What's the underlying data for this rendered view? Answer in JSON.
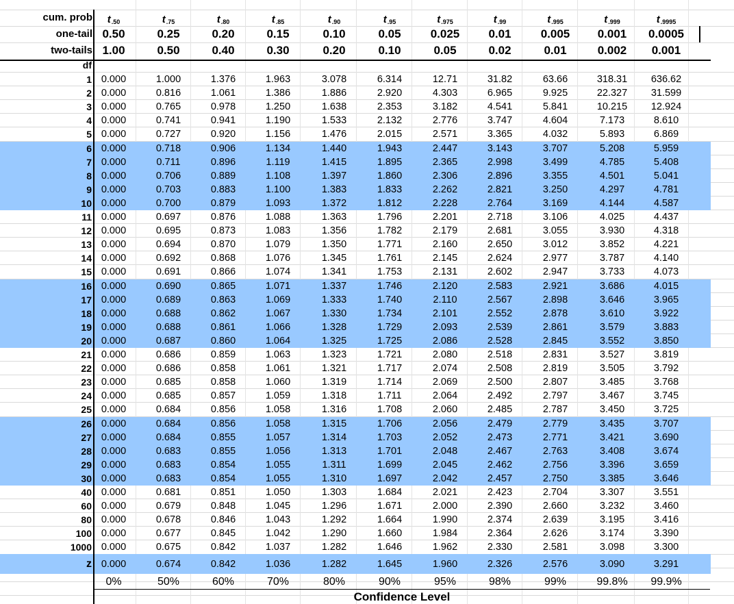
{
  "header": {
    "row_labels": {
      "cum_prob": "cum. prob",
      "one_tail": "one-tail",
      "two_tails": "two-tails"
    },
    "symbols": [
      {
        "t": "t",
        "sub": ".50"
      },
      {
        "t": "t",
        "sub": ".75"
      },
      {
        "t": "t",
        "sub": ".80"
      },
      {
        "t": "t",
        "sub": ".85"
      },
      {
        "t": "t",
        "sub": ".90"
      },
      {
        "t": "t",
        "sub": ".95"
      },
      {
        "t": "t",
        "sub": ".975"
      },
      {
        "t": "t",
        "sub": ".99"
      },
      {
        "t": "t",
        "sub": ".995"
      },
      {
        "t": "t",
        "sub": ".999"
      },
      {
        "t": "t",
        "sub": ".9995"
      }
    ],
    "one_tail": [
      "0.50",
      "0.25",
      "0.20",
      "0.15",
      "0.10",
      "0.05",
      "0.025",
      "0.01",
      "0.005",
      "0.001",
      "0.0005"
    ],
    "two_tails": [
      "1.00",
      "0.50",
      "0.40",
      "0.30",
      "0.20",
      "0.10",
      "0.05",
      "0.02",
      "0.01",
      "0.002",
      "0.001"
    ]
  },
  "df_label": "df",
  "rows": [
    {
      "df": "1",
      "values": [
        "0.000",
        "1.000",
        "1.376",
        "1.963",
        "3.078",
        "6.314",
        "12.71",
        "31.82",
        "63.66",
        "318.31",
        "636.62"
      ]
    },
    {
      "df": "2",
      "values": [
        "0.000",
        "0.816",
        "1.061",
        "1.386",
        "1.886",
        "2.920",
        "4.303",
        "6.965",
        "9.925",
        "22.327",
        "31.599"
      ]
    },
    {
      "df": "3",
      "values": [
        "0.000",
        "0.765",
        "0.978",
        "1.250",
        "1.638",
        "2.353",
        "3.182",
        "4.541",
        "5.841",
        "10.215",
        "12.924"
      ]
    },
    {
      "df": "4",
      "values": [
        "0.000",
        "0.741",
        "0.941",
        "1.190",
        "1.533",
        "2.132",
        "2.776",
        "3.747",
        "4.604",
        "7.173",
        "8.610"
      ]
    },
    {
      "df": "5",
      "values": [
        "0.000",
        "0.727",
        "0.920",
        "1.156",
        "1.476",
        "2.015",
        "2.571",
        "3.365",
        "4.032",
        "5.893",
        "6.869"
      ]
    },
    {
      "df": "6",
      "values": [
        "0.000",
        "0.718",
        "0.906",
        "1.134",
        "1.440",
        "1.943",
        "2.447",
        "3.143",
        "3.707",
        "5.208",
        "5.959"
      ]
    },
    {
      "df": "7",
      "values": [
        "0.000",
        "0.711",
        "0.896",
        "1.119",
        "1.415",
        "1.895",
        "2.365",
        "2.998",
        "3.499",
        "4.785",
        "5.408"
      ]
    },
    {
      "df": "8",
      "values": [
        "0.000",
        "0.706",
        "0.889",
        "1.108",
        "1.397",
        "1.860",
        "2.306",
        "2.896",
        "3.355",
        "4.501",
        "5.041"
      ]
    },
    {
      "df": "9",
      "values": [
        "0.000",
        "0.703",
        "0.883",
        "1.100",
        "1.383",
        "1.833",
        "2.262",
        "2.821",
        "3.250",
        "4.297",
        "4.781"
      ]
    },
    {
      "df": "10",
      "values": [
        "0.000",
        "0.700",
        "0.879",
        "1.093",
        "1.372",
        "1.812",
        "2.228",
        "2.764",
        "3.169",
        "4.144",
        "4.587"
      ]
    },
    {
      "df": "11",
      "values": [
        "0.000",
        "0.697",
        "0.876",
        "1.088",
        "1.363",
        "1.796",
        "2.201",
        "2.718",
        "3.106",
        "4.025",
        "4.437"
      ]
    },
    {
      "df": "12",
      "values": [
        "0.000",
        "0.695",
        "0.873",
        "1.083",
        "1.356",
        "1.782",
        "2.179",
        "2.681",
        "3.055",
        "3.930",
        "4.318"
      ]
    },
    {
      "df": "13",
      "values": [
        "0.000",
        "0.694",
        "0.870",
        "1.079",
        "1.350",
        "1.771",
        "2.160",
        "2.650",
        "3.012",
        "3.852",
        "4.221"
      ]
    },
    {
      "df": "14",
      "values": [
        "0.000",
        "0.692",
        "0.868",
        "1.076",
        "1.345",
        "1.761",
        "2.145",
        "2.624",
        "2.977",
        "3.787",
        "4.140"
      ]
    },
    {
      "df": "15",
      "values": [
        "0.000",
        "0.691",
        "0.866",
        "1.074",
        "1.341",
        "1.753",
        "2.131",
        "2.602",
        "2.947",
        "3.733",
        "4.073"
      ]
    },
    {
      "df": "16",
      "values": [
        "0.000",
        "0.690",
        "0.865",
        "1.071",
        "1.337",
        "1.746",
        "2.120",
        "2.583",
        "2.921",
        "3.686",
        "4.015"
      ]
    },
    {
      "df": "17",
      "values": [
        "0.000",
        "0.689",
        "0.863",
        "1.069",
        "1.333",
        "1.740",
        "2.110",
        "2.567",
        "2.898",
        "3.646",
        "3.965"
      ]
    },
    {
      "df": "18",
      "values": [
        "0.000",
        "0.688",
        "0.862",
        "1.067",
        "1.330",
        "1.734",
        "2.101",
        "2.552",
        "2.878",
        "3.610",
        "3.922"
      ]
    },
    {
      "df": "19",
      "values": [
        "0.000",
        "0.688",
        "0.861",
        "1.066",
        "1.328",
        "1.729",
        "2.093",
        "2.539",
        "2.861",
        "3.579",
        "3.883"
      ]
    },
    {
      "df": "20",
      "values": [
        "0.000",
        "0.687",
        "0.860",
        "1.064",
        "1.325",
        "1.725",
        "2.086",
        "2.528",
        "2.845",
        "3.552",
        "3.850"
      ]
    },
    {
      "df": "21",
      "values": [
        "0.000",
        "0.686",
        "0.859",
        "1.063",
        "1.323",
        "1.721",
        "2.080",
        "2.518",
        "2.831",
        "3.527",
        "3.819"
      ]
    },
    {
      "df": "22",
      "values": [
        "0.000",
        "0.686",
        "0.858",
        "1.061",
        "1.321",
        "1.717",
        "2.074",
        "2.508",
        "2.819",
        "3.505",
        "3.792"
      ]
    },
    {
      "df": "23",
      "values": [
        "0.000",
        "0.685",
        "0.858",
        "1.060",
        "1.319",
        "1.714",
        "2.069",
        "2.500",
        "2.807",
        "3.485",
        "3.768"
      ]
    },
    {
      "df": "24",
      "values": [
        "0.000",
        "0.685",
        "0.857",
        "1.059",
        "1.318",
        "1.711",
        "2.064",
        "2.492",
        "2.797",
        "3.467",
        "3.745"
      ]
    },
    {
      "df": "25",
      "values": [
        "0.000",
        "0.684",
        "0.856",
        "1.058",
        "1.316",
        "1.708",
        "2.060",
        "2.485",
        "2.787",
        "3.450",
        "3.725"
      ]
    },
    {
      "df": "26",
      "values": [
        "0.000",
        "0.684",
        "0.856",
        "1.058",
        "1.315",
        "1.706",
        "2.056",
        "2.479",
        "2.779",
        "3.435",
        "3.707"
      ]
    },
    {
      "df": "27",
      "values": [
        "0.000",
        "0.684",
        "0.855",
        "1.057",
        "1.314",
        "1.703",
        "2.052",
        "2.473",
        "2.771",
        "3.421",
        "3.690"
      ]
    },
    {
      "df": "28",
      "values": [
        "0.000",
        "0.683",
        "0.855",
        "1.056",
        "1.313",
        "1.701",
        "2.048",
        "2.467",
        "2.763",
        "3.408",
        "3.674"
      ]
    },
    {
      "df": "29",
      "values": [
        "0.000",
        "0.683",
        "0.854",
        "1.055",
        "1.311",
        "1.699",
        "2.045",
        "2.462",
        "2.756",
        "3.396",
        "3.659"
      ]
    },
    {
      "df": "30",
      "values": [
        "0.000",
        "0.683",
        "0.854",
        "1.055",
        "1.310",
        "1.697",
        "2.042",
        "2.457",
        "2.750",
        "3.385",
        "3.646"
      ]
    },
    {
      "df": "40",
      "values": [
        "0.000",
        "0.681",
        "0.851",
        "1.050",
        "1.303",
        "1.684",
        "2.021",
        "2.423",
        "2.704",
        "3.307",
        "3.551"
      ]
    },
    {
      "df": "60",
      "values": [
        "0.000",
        "0.679",
        "0.848",
        "1.045",
        "1.296",
        "1.671",
        "2.000",
        "2.390",
        "2.660",
        "3.232",
        "3.460"
      ]
    },
    {
      "df": "80",
      "values": [
        "0.000",
        "0.678",
        "0.846",
        "1.043",
        "1.292",
        "1.664",
        "1.990",
        "2.374",
        "2.639",
        "3.195",
        "3.416"
      ]
    },
    {
      "df": "100",
      "values": [
        "0.000",
        "0.677",
        "0.845",
        "1.042",
        "1.290",
        "1.660",
        "1.984",
        "2.364",
        "2.626",
        "3.174",
        "3.390"
      ]
    },
    {
      "df": "1000",
      "values": [
        "0.000",
        "0.675",
        "0.842",
        "1.037",
        "1.282",
        "1.646",
        "1.962",
        "2.330",
        "2.581",
        "3.098",
        "3.300"
      ]
    }
  ],
  "z_row": {
    "label": "z",
    "values": [
      "0.000",
      "0.674",
      "0.842",
      "1.036",
      "1.282",
      "1.645",
      "1.960",
      "2.326",
      "2.576",
      "3.090",
      "3.291"
    ]
  },
  "confidence": {
    "values": [
      "0%",
      "50%",
      "60%",
      "70%",
      "80%",
      "90%",
      "95%",
      "98%",
      "99%",
      "99.8%",
      "99.9%"
    ],
    "title": "Confidence Level"
  },
  "colors": {
    "highlight": "#99c9ff",
    "gridline": "#d9d9d9"
  }
}
